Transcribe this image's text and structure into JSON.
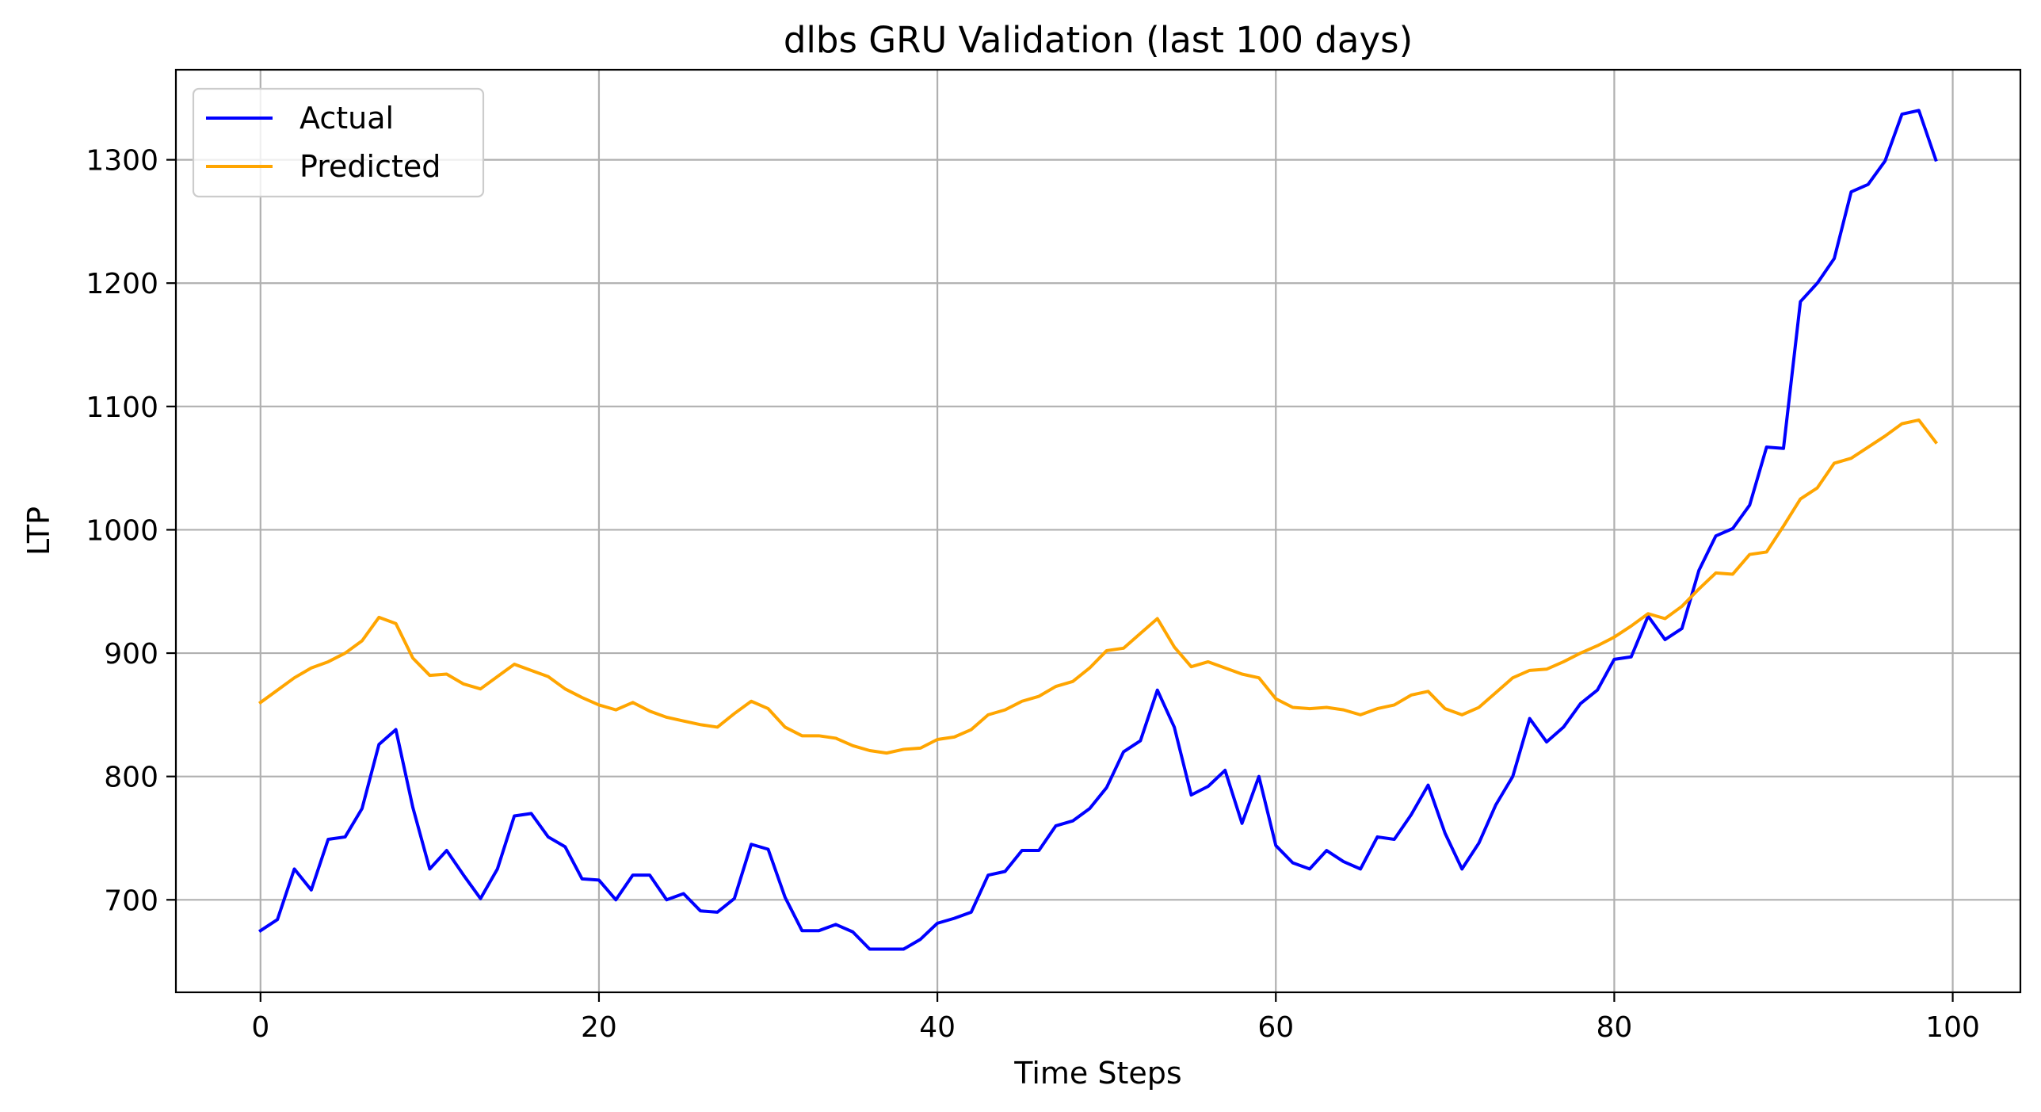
{
  "chart_data": {
    "type": "line",
    "title": "dlbs GRU Validation (last 100 days)",
    "xlabel": "Time Steps",
    "ylabel": "LTP",
    "xlim": [
      -5,
      104
    ],
    "ylim": [
      625,
      1373
    ],
    "x_ticks": [
      "0",
      "20",
      "40",
      "60",
      "80",
      "100"
    ],
    "y_ticks": [
      "700",
      "800",
      "900",
      "1000",
      "1100",
      "1200",
      "1300"
    ],
    "grid": true,
    "legend_position": "upper left",
    "series": [
      {
        "name": "Actual",
        "color": "#0000ff",
        "values": [
          675,
          684,
          725,
          708,
          749,
          751,
          774,
          826,
          838,
          775,
          725,
          740,
          720,
          701,
          725,
          768,
          770,
          751,
          743,
          717,
          716,
          700,
          720,
          720,
          700,
          705,
          691,
          690,
          701,
          745,
          741,
          702,
          675,
          675,
          680,
          674,
          660,
          660,
          660,
          668,
          681,
          685,
          690,
          720,
          723,
          740,
          740,
          760,
          764,
          774,
          791,
          820,
          829,
          870,
          840,
          785,
          792,
          805,
          762,
          800,
          744,
          730,
          725,
          740,
          731,
          725,
          751,
          749,
          769,
          793,
          754,
          725,
          746,
          777,
          800,
          847,
          828,
          840,
          859,
          870,
          895,
          897,
          930,
          911,
          920,
          967,
          995,
          1001,
          1020,
          1067,
          1066,
          1185,
          1200,
          1220,
          1274,
          1280,
          1299,
          1337,
          1340,
          1300
        ]
      },
      {
        "name": "Predicted",
        "color": "#ffa500",
        "values": [
          860,
          870,
          880,
          888,
          893,
          900,
          910,
          929,
          924,
          896,
          882,
          883,
          875,
          871,
          881,
          891,
          886,
          881,
          871,
          864,
          858,
          854,
          860,
          853,
          848,
          845,
          842,
          840,
          851,
          861,
          855,
          840,
          833,
          833,
          831,
          825,
          821,
          819,
          822,
          823,
          830,
          832,
          838,
          850,
          854,
          861,
          865,
          873,
          877,
          888,
          902,
          904,
          916,
          928,
          905,
          889,
          893,
          888,
          883,
          880,
          863,
          856,
          855,
          856,
          854,
          850,
          855,
          858,
          866,
          869,
          855,
          850,
          856,
          868,
          880,
          886,
          887,
          893,
          900,
          906,
          913,
          922,
          932,
          928,
          938,
          952,
          965,
          964,
          980,
          982,
          1003,
          1025,
          1034,
          1054,
          1058,
          1067,
          1076,
          1086,
          1089,
          1071
        ]
      }
    ]
  }
}
